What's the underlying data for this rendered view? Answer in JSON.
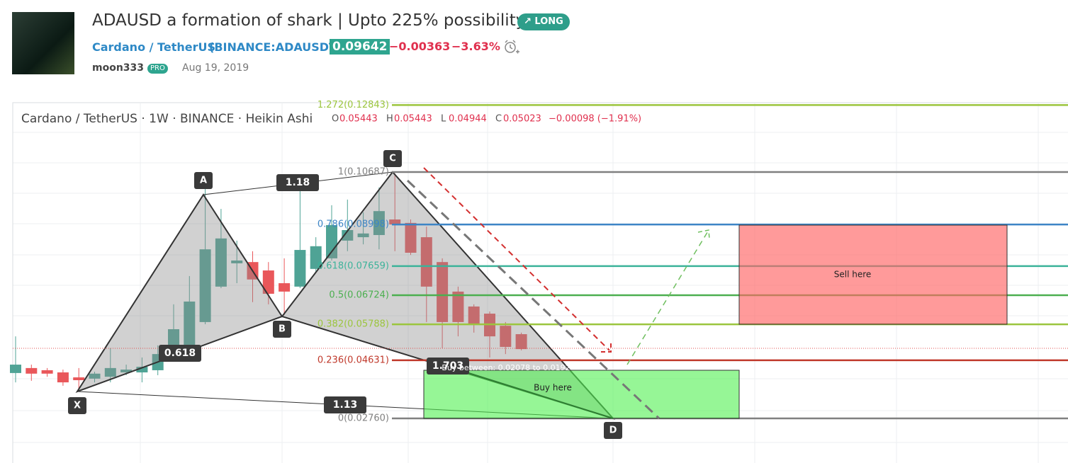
{
  "header": {
    "title": "ADAUSD a formation of shark | Upto 225% possibility",
    "badge": "LONG",
    "symbol": "Cardano / TetherUS",
    "exchange": "(BINANCE:ADAUSDT)",
    "price": "0.09642",
    "change": "−0.00363",
    "change_pct": "−3.63%",
    "author": "moon333",
    "author_badge": "PRO",
    "date": "Aug 19, 2019"
  },
  "chart": {
    "legend": {
      "title": "Cardano / TetherUS · 1W · BINANCE · Heikin Ashi",
      "ohlc": [
        {
          "label": "O",
          "value": "0.05443"
        },
        {
          "label": "H",
          "value": "0.05443"
        },
        {
          "label": "L",
          "value": "0.04944"
        },
        {
          "label": "C",
          "value": "0.05023"
        }
      ],
      "change": "−0.00098 (−1.91%)"
    },
    "fib_levels": [
      {
        "value": 0.12843,
        "label": "1.272(0.12843)",
        "color": "#9bc53d"
      },
      {
        "value": 0.10687,
        "label": "1(0.10687)",
        "color": "#808080"
      },
      {
        "value": 0.08998,
        "label": "0.786(0.08998)",
        "color": "#3d85c6"
      },
      {
        "value": 0.07659,
        "label": "0.618(0.07659)",
        "color": "#3cb39a"
      },
      {
        "value": 0.06724,
        "label": "0.5(0.06724)",
        "color": "#4caf50"
      },
      {
        "value": 0.05788,
        "label": "0.382(0.05788)",
        "color": "#9bc53d"
      },
      {
        "value": 0.04631,
        "label": "0.236(0.04631)",
        "color": "#c0392b"
      },
      {
        "value": 0.0276,
        "label": "0(0.02760)",
        "color": "#808080"
      }
    ],
    "candles": [
      {
        "open": 0.0422,
        "high": 0.054,
        "low": 0.0392,
        "close": 0.0449
      },
      {
        "open": 0.0438,
        "high": 0.0449,
        "low": 0.0397,
        "close": 0.042
      },
      {
        "open": 0.0431,
        "high": 0.0438,
        "low": 0.041,
        "close": 0.042
      },
      {
        "open": 0.0424,
        "high": 0.0433,
        "low": 0.0381,
        "close": 0.0392
      },
      {
        "open": 0.0408,
        "high": 0.0438,
        "low": 0.0369,
        "close": 0.0399
      },
      {
        "open": 0.0404,
        "high": 0.0426,
        "low": 0.0392,
        "close": 0.042
      },
      {
        "open": 0.041,
        "high": 0.0502,
        "low": 0.0392,
        "close": 0.0438
      },
      {
        "open": 0.0424,
        "high": 0.0449,
        "low": 0.0415,
        "close": 0.0433
      },
      {
        "open": 0.0424,
        "high": 0.0472,
        "low": 0.0392,
        "close": 0.0442
      },
      {
        "open": 0.0431,
        "high": 0.0511,
        "low": 0.0415,
        "close": 0.0483
      },
      {
        "open": 0.0472,
        "high": 0.0643,
        "low": 0.0461,
        "close": 0.0563
      },
      {
        "open": 0.0506,
        "high": 0.0734,
        "low": 0.0502,
        "close": 0.0652
      },
      {
        "open": 0.0586,
        "high": 0.1036,
        "low": 0.0579,
        "close": 0.082
      },
      {
        "open": 0.07,
        "high": 0.095,
        "low": 0.0695,
        "close": 0.0855
      },
      {
        "open": 0.0775,
        "high": 0.0848,
        "low": 0.0711,
        "close": 0.0784
      },
      {
        "open": 0.0779,
        "high": 0.0814,
        "low": 0.065,
        "close": 0.0723
      },
      {
        "open": 0.0752,
        "high": 0.0779,
        "low": 0.0643,
        "close": 0.0677
      },
      {
        "open": 0.0711,
        "high": 0.0791,
        "low": 0.0609,
        "close": 0.0684
      },
      {
        "open": 0.07,
        "high": 0.1052,
        "low": 0.0695,
        "close": 0.0818
      },
      {
        "open": 0.0757,
        "high": 0.0859,
        "low": 0.0745,
        "close": 0.083
      },
      {
        "open": 0.0791,
        "high": 0.0962,
        "low": 0.0784,
        "close": 0.0898
      },
      {
        "open": 0.0848,
        "high": 0.098,
        "low": 0.0814,
        "close": 0.0882
      },
      {
        "open": 0.0859,
        "high": 0.0939,
        "low": 0.0836,
        "close": 0.0871
      },
      {
        "open": 0.0866,
        "high": 0.1019,
        "low": 0.082,
        "close": 0.0943
      },
      {
        "open": 0.0916,
        "high": 0.1064,
        "low": 0.0814,
        "close": 0.09
      },
      {
        "open": 0.0905,
        "high": 0.0916,
        "low": 0.0802,
        "close": 0.0809
      },
      {
        "open": 0.0859,
        "high": 0.0893,
        "low": 0.0586,
        "close": 0.07
      },
      {
        "open": 0.0779,
        "high": 0.0791,
        "low": 0.0502,
        "close": 0.0586
      },
      {
        "open": 0.0684,
        "high": 0.07,
        "low": 0.054,
        "close": 0.0586
      },
      {
        "open": 0.0636,
        "high": 0.0643,
        "low": 0.0552,
        "close": 0.0581
      },
      {
        "open": 0.0613,
        "high": 0.062,
        "low": 0.0472,
        "close": 0.054
      },
      {
        "open": 0.0574,
        "high": 0.0586,
        "low": 0.0483,
        "close": 0.0506
      },
      {
        "open": 0.0547,
        "high": 0.0552,
        "low": 0.0495,
        "close": 0.0499
      }
    ],
    "points": [
      "X",
      "A",
      "B",
      "C",
      "D"
    ],
    "ratios": [
      "0.618",
      "1.18",
      "1.13",
      "1.703"
    ],
    "annotations": {
      "sell": "Sell here",
      "buy": "Buy here",
      "buy_range": "Buy between: 0.02078 to 0.0192"
    }
  }
}
